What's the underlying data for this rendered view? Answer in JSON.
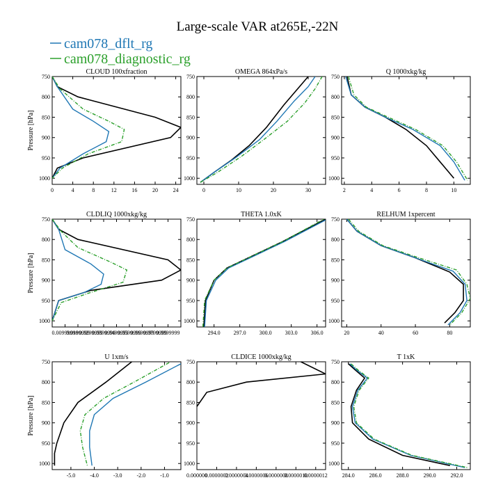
{
  "figure_title": "Large-scale VAR at265E,-22N",
  "legend": [
    {
      "label": "cam078_dflt_rg",
      "color": "#1f77b4",
      "style": "solid"
    },
    {
      "label": "cam078_diagnostic_rg",
      "color": "#2ca02c",
      "style": "dashdot"
    }
  ],
  "colors": {
    "cam078_dflt_rg": "#1f77b4",
    "cam078_diagnostic_rg": "#2ca02c",
    "third": "#000000"
  },
  "chart_data": [
    {
      "type": "line",
      "title": "CLOUD  100xfraction",
      "ylabel": "Pressure [hPa]",
      "xlim": [
        0,
        25
      ],
      "ylim": [
        1015,
        750
      ],
      "xticks": [
        0,
        4,
        8,
        12,
        16,
        20,
        24
      ],
      "xticklabels": [
        "0",
        "4",
        "8",
        "12",
        "16",
        "20",
        "24"
      ],
      "yticks": [
        750,
        800,
        850,
        900,
        950,
        1000
      ],
      "yticklabels": [
        "750",
        "800",
        "850",
        "900",
        "950",
        "1000"
      ],
      "series": [
        {
          "color": "#000000",
          "style": "solid",
          "x": [
            0,
            1,
            5,
            20,
            25,
            23,
            6,
            1,
            0
          ],
          "y": [
            750,
            775,
            800,
            850,
            875,
            900,
            950,
            975,
            1000
          ]
        },
        {
          "color": "#1f77b4",
          "style": "solid",
          "x": [
            0,
            1,
            4,
            8,
            11,
            10.5,
            6,
            1.5,
            0
          ],
          "y": [
            750,
            775,
            830,
            860,
            885,
            910,
            940,
            975,
            1000
          ]
        },
        {
          "color": "#2ca02c",
          "style": "dashdot",
          "x": [
            0,
            1.5,
            6,
            11,
            14,
            13.5,
            7,
            2,
            0
          ],
          "y": [
            750,
            780,
            830,
            860,
            880,
            910,
            940,
            975,
            1000
          ]
        }
      ]
    },
    {
      "type": "line",
      "title": "OMEGA  864xPa/s",
      "ylabel": "",
      "xlim": [
        -2,
        35
      ],
      "ylim": [
        1015,
        750
      ],
      "xticks": [
        0,
        10,
        20,
        30
      ],
      "xticklabels": [
        "0",
        "10",
        "20",
        "30"
      ],
      "yticks": [
        750,
        800,
        850,
        900,
        950,
        1000
      ],
      "yticklabels": [
        "750",
        "800",
        "850",
        "900",
        "950",
        "1000"
      ],
      "series": [
        {
          "color": "#000000",
          "style": "solid",
          "x": [
            -1,
            3,
            8,
            13,
            18,
            23,
            27,
            30
          ],
          "y": [
            1010,
            985,
            955,
            920,
            875,
            820,
            780,
            750
          ]
        },
        {
          "color": "#1f77b4",
          "style": "solid",
          "x": [
            -1,
            3,
            9,
            16,
            21,
            26,
            30,
            32
          ],
          "y": [
            1010,
            985,
            950,
            905,
            860,
            810,
            775,
            750
          ]
        },
        {
          "color": "#2ca02c",
          "style": "dashdot",
          "x": [
            -1,
            4,
            11,
            18,
            24,
            29,
            32,
            34
          ],
          "y": [
            1010,
            985,
            945,
            900,
            860,
            815,
            780,
            750
          ]
        }
      ]
    },
    {
      "type": "line",
      "title": "Q  1000xkg/kg",
      "ylabel": "",
      "xlim": [
        1.8,
        11.2
      ],
      "ylim": [
        1015,
        750
      ],
      "xticks": [
        2,
        4,
        6,
        8,
        10
      ],
      "xticklabels": [
        "2",
        "4",
        "6",
        "8",
        "10"
      ],
      "yticks": [
        750,
        800,
        850,
        900,
        950,
        1000
      ],
      "yticklabels": [
        "750",
        "800",
        "850",
        "900",
        "950",
        "1000"
      ],
      "series": [
        {
          "color": "#000000",
          "style": "solid",
          "x": [
            2.2,
            2.5,
            3.5,
            5,
            6.5,
            8,
            9,
            10
          ],
          "y": [
            750,
            795,
            825,
            850,
            880,
            920,
            960,
            1000
          ]
        },
        {
          "color": "#1f77b4",
          "style": "solid",
          "x": [
            2.1,
            2.5,
            3.5,
            5,
            7,
            9,
            10,
            10.8
          ],
          "y": [
            750,
            795,
            825,
            850,
            880,
            920,
            960,
            1005
          ]
        },
        {
          "color": "#2ca02c",
          "style": "dashdot",
          "x": [
            2.3,
            2.7,
            3.6,
            5.2,
            7.2,
            9.2,
            10.2,
            11
          ],
          "y": [
            750,
            795,
            825,
            850,
            880,
            920,
            960,
            1005
          ]
        }
      ]
    },
    {
      "type": "line",
      "title": "CLDLIQ  1000xkg/kg",
      "ylabel": "Pressure [hPa]",
      "xlim": [
        0,
        1.0
      ],
      "ylim": [
        1015,
        750
      ],
      "xticks": [
        0.1,
        0.2,
        0.3,
        0.4,
        0.5,
        0.6,
        0.7,
        0.8,
        0.9
      ],
      "xticklabels": [
        "0.00999998",
        "0.0199999",
        "0.0299999",
        "0.0399999",
        "0.0499999",
        "0.0599999",
        "0.0699999",
        "0.0799999",
        "0.0899999"
      ],
      "yticks": [
        750,
        800,
        850,
        900,
        950,
        1000
      ],
      "yticklabels": [
        "750",
        "800",
        "850",
        "900",
        "950",
        "1000"
      ],
      "series": [
        {
          "color": "#000000",
          "style": "solid",
          "x": [
            0,
            0.05,
            0.2,
            0.9,
            1.0,
            0.85,
            0.3,
            0.05,
            0
          ],
          "y": [
            750,
            775,
            800,
            850,
            875,
            900,
            925,
            950,
            1000
          ]
        },
        {
          "color": "#1f77b4",
          "style": "solid",
          "x": [
            0,
            0.05,
            0.1,
            0.3,
            0.4,
            0.38,
            0.25,
            0.05,
            0
          ],
          "y": [
            750,
            775,
            825,
            860,
            885,
            910,
            930,
            950,
            1000
          ]
        },
        {
          "color": "#2ca02c",
          "style": "dashdot",
          "x": [
            0,
            0.07,
            0.2,
            0.45,
            0.58,
            0.55,
            0.3,
            0.07,
            0
          ],
          "y": [
            750,
            780,
            820,
            855,
            875,
            905,
            930,
            955,
            1000
          ]
        }
      ]
    },
    {
      "type": "line",
      "title": "THETA  1.0xK",
      "ylabel": "",
      "xlim": [
        292,
        307
      ],
      "ylim": [
        1015,
        750
      ],
      "xticks": [
        294,
        297,
        300,
        303,
        306
      ],
      "xticklabels": [
        "294.0",
        "297.0",
        "300.0",
        "303.0",
        "306.0"
      ],
      "yticks": [
        750,
        800,
        850,
        900,
        950,
        1000
      ],
      "yticklabels": [
        "750",
        "800",
        "850",
        "900",
        "950",
        "1000"
      ],
      "series": [
        {
          "color": "#000000",
          "style": "solid",
          "x": [
            292.8,
            293,
            294,
            295.5,
            298,
            302,
            307
          ],
          "y": [
            1015,
            950,
            900,
            870,
            845,
            805,
            750
          ]
        },
        {
          "color": "#1f77b4",
          "style": "solid",
          "x": [
            292.9,
            293.1,
            294.2,
            295.7,
            298.2,
            302.2,
            307
          ],
          "y": [
            1015,
            950,
            900,
            870,
            845,
            805,
            752
          ]
        },
        {
          "color": "#2ca02c",
          "style": "dashdot",
          "x": [
            292.7,
            292.9,
            294,
            295.5,
            298,
            302,
            306.8
          ],
          "y": [
            1015,
            950,
            900,
            870,
            845,
            805,
            750
          ]
        }
      ]
    },
    {
      "type": "line",
      "title": "RELHUM  1xpercent",
      "ylabel": "",
      "xlim": [
        17,
        92
      ],
      "ylim": [
        1015,
        750
      ],
      "xticks": [
        20,
        40,
        60,
        80
      ],
      "xticklabels": [
        "20",
        "40",
        "60",
        "80"
      ],
      "yticks": [
        750,
        800,
        850,
        900,
        950,
        1000
      ],
      "yticklabels": [
        "750",
        "800",
        "850",
        "900",
        "950",
        "1000"
      ],
      "series": [
        {
          "color": "#000000",
          "style": "solid",
          "x": [
            20,
            26,
            40,
            60,
            80,
            88,
            88,
            83,
            77
          ],
          "y": [
            750,
            780,
            815,
            845,
            880,
            910,
            950,
            980,
            1005
          ]
        },
        {
          "color": "#1f77b4",
          "style": "solid",
          "x": [
            20,
            26,
            40,
            60,
            82,
            89,
            90,
            86,
            79
          ],
          "y": [
            750,
            780,
            815,
            845,
            878,
            910,
            950,
            980,
            1010
          ]
        },
        {
          "color": "#2ca02c",
          "style": "dashdot",
          "x": [
            21,
            27,
            41,
            62,
            84,
            90,
            92,
            87,
            80
          ],
          "y": [
            750,
            780,
            815,
            845,
            875,
            910,
            945,
            980,
            1010
          ]
        }
      ]
    },
    {
      "type": "line",
      "title": "U  1xm/s",
      "ylabel": "Pressure [hPa]",
      "xlim": [
        -5.8,
        -0.3
      ],
      "ylim": [
        1015,
        750
      ],
      "xticks": [
        -5,
        -4,
        -3,
        -2,
        -1
      ],
      "xticklabels": [
        "-5.0",
        "-4.0",
        "-3.0",
        "-2.0",
        "-1.0"
      ],
      "yticks": [
        750,
        800,
        850,
        900,
        950,
        1000
      ],
      "yticklabels": [
        "750",
        "800",
        "850",
        "900",
        "950",
        "1000"
      ],
      "series": [
        {
          "color": "#000000",
          "style": "solid",
          "x": [
            -2.4,
            -3.5,
            -4.7,
            -5.3,
            -5.6,
            -5.7,
            -5.7
          ],
          "y": [
            750,
            800,
            850,
            900,
            950,
            975,
            1005
          ]
        },
        {
          "color": "#1f77b4",
          "style": "solid",
          "x": [
            -0.3,
            -1.8,
            -3.2,
            -4.0,
            -4.2,
            -4.2,
            -4.1
          ],
          "y": [
            755,
            800,
            840,
            880,
            920,
            960,
            1005
          ]
        },
        {
          "color": "#2ca02c",
          "style": "dashdot",
          "x": [
            -0.8,
            -2.3,
            -3.6,
            -4.4,
            -4.6,
            -4.5,
            -4.3
          ],
          "y": [
            752,
            800,
            840,
            880,
            920,
            960,
            1005
          ]
        }
      ]
    },
    {
      "type": "line",
      "title": "CLDICE  1000xkg/kg",
      "ylabel": "",
      "xlim": [
        0,
        13
      ],
      "ylim": [
        1015,
        750
      ],
      "xticks": [
        0,
        2,
        4,
        6,
        8,
        10,
        12
      ],
      "xticklabels": [
        "0.000000",
        "0.0000002",
        "0.0000004",
        "0.0000006",
        "0.0000008",
        "0.0000010",
        "0.0000012"
      ],
      "yticks": [
        750,
        800,
        850,
        900,
        950,
        1000
      ],
      "yticklabels": [
        "750",
        "800",
        "850",
        "900",
        "950",
        "1000"
      ],
      "series": [
        {
          "color": "#000000",
          "style": "solid",
          "x": [
            10.5,
            13,
            5,
            1,
            0
          ],
          "y": [
            750,
            780,
            800,
            825,
            860
          ]
        }
      ]
    },
    {
      "type": "line",
      "title": "T  1xK",
      "ylabel": "",
      "xlim": [
        283.5,
        293
      ],
      "ylim": [
        1015,
        750
      ],
      "xticks": [
        284,
        286,
        288,
        290,
        292
      ],
      "xticklabels": [
        "284.0",
        "286.0",
        "288.0",
        "290.0",
        "292.0"
      ],
      "yticks": [
        750,
        800,
        850,
        900,
        950,
        1000
      ],
      "yticklabels": [
        "750",
        "800",
        "850",
        "900",
        "950",
        "1000"
      ],
      "series": [
        {
          "color": "#000000",
          "style": "solid",
          "x": [
            284,
            284.5,
            285.2,
            284.6,
            284.2,
            284.3,
            285.5,
            288,
            291.5
          ],
          "y": [
            755,
            770,
            790,
            820,
            860,
            900,
            940,
            980,
            1005
          ]
        },
        {
          "color": "#1f77b4",
          "style": "solid",
          "x": [
            284.1,
            284.6,
            285.4,
            284.7,
            284.3,
            284.5,
            285.8,
            288.6,
            292.6
          ],
          "y": [
            755,
            770,
            790,
            820,
            860,
            900,
            940,
            980,
            1010
          ]
        },
        {
          "color": "#2ca02c",
          "style": "dashdot",
          "x": [
            284.2,
            284.7,
            285.5,
            284.8,
            284.4,
            284.6,
            285.9,
            288.7,
            292.8
          ],
          "y": [
            755,
            770,
            790,
            820,
            860,
            900,
            940,
            980,
            1010
          ]
        }
      ]
    }
  ]
}
